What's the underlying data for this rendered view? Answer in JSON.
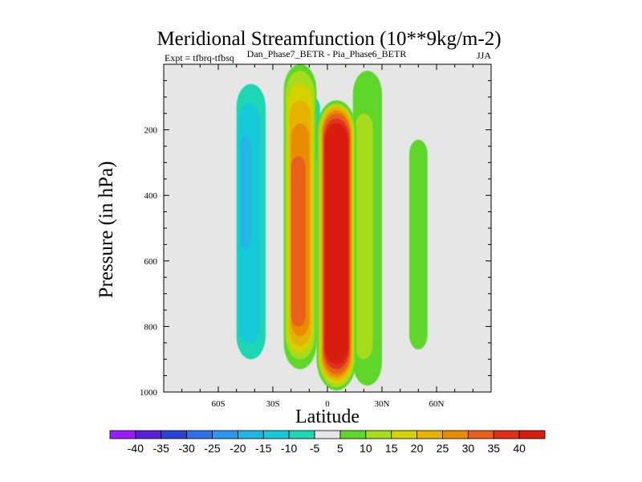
{
  "chart_data": {
    "type": "filled-contour",
    "title": "Meridional Streamfunction (10**9kg/m-2)",
    "subtitle": "Dan_Phase7_BETR - Pia_Phase6_BETR",
    "experiment_label": "Expt = tfbrq-tfbsq",
    "season": "JJA",
    "xlabel": "Latitude",
    "ylabel": "Pressure (in hPa)",
    "xlim": [
      -90,
      90
    ],
    "ylim": [
      1000,
      0
    ],
    "x_ticks": [
      {
        "value": -60,
        "label": "60S"
      },
      {
        "value": -30,
        "label": "30S"
      },
      {
        "value": 0,
        "label": "0"
      },
      {
        "value": 30,
        "label": "30N"
      },
      {
        "value": 60,
        "label": "60N"
      }
    ],
    "y_ticks": [
      {
        "value": 200,
        "label": "200"
      },
      {
        "value": 400,
        "label": "400"
      },
      {
        "value": 600,
        "label": "600"
      },
      {
        "value": 800,
        "label": "800"
      },
      {
        "value": 1000,
        "label": "1000"
      }
    ],
    "background_color": "#e6e6e6",
    "contour_levels": [
      -40,
      -35,
      -30,
      -25,
      -20,
      -15,
      -10,
      -5,
      5,
      10,
      15,
      20,
      25,
      30,
      35,
      40
    ],
    "colorbar_colors": [
      "#9b1cff",
      "#5a1fd6",
      "#2b3fd9",
      "#2d72ec",
      "#2a98f0",
      "#22b6e8",
      "#17c9d9",
      "#1fd6b4",
      "#e6e6e6",
      "#5fd62a",
      "#a6dc1c",
      "#d4d200",
      "#e6b400",
      "#ea8c00",
      "#e8601a",
      "#e0301c",
      "#d81d0c"
    ],
    "features": [
      {
        "name": "tropical-positive-cell",
        "sign": "positive",
        "lat_range": [
          -5,
          15
        ],
        "p_range": [
          130,
          990
        ],
        "peak": 40
      },
      {
        "name": "sh-subtropical-positive",
        "sign": "positive",
        "lat_range": [
          -25,
          -5
        ],
        "p_range": [
          0,
          930
        ],
        "peak": 30
      },
      {
        "name": "sh-midlat-negative",
        "sign": "negative",
        "lat_range": [
          -45,
          -25
        ],
        "p_range": [
          0,
          950
        ],
        "peak": -15
      },
      {
        "name": "upper-negative-pocket",
        "sign": "negative",
        "lat_range": [
          -12,
          -4
        ],
        "p_range": [
          60,
          340
        ],
        "peak": -15
      },
      {
        "name": "nh-positive-band",
        "sign": "positive",
        "lat_range": [
          15,
          30
        ],
        "p_range": [
          20,
          980
        ],
        "peak": 10
      },
      {
        "name": "nh-midlat-positive",
        "sign": "positive",
        "lat_range": [
          45,
          55
        ],
        "p_range": [
          230,
          870
        ],
        "peak": 5
      },
      {
        "name": "nh-negative-band",
        "sign": "negative",
        "lat_range": [
          23,
          29
        ],
        "p_range": [
          50,
          1000
        ],
        "peak": -5
      }
    ]
  }
}
